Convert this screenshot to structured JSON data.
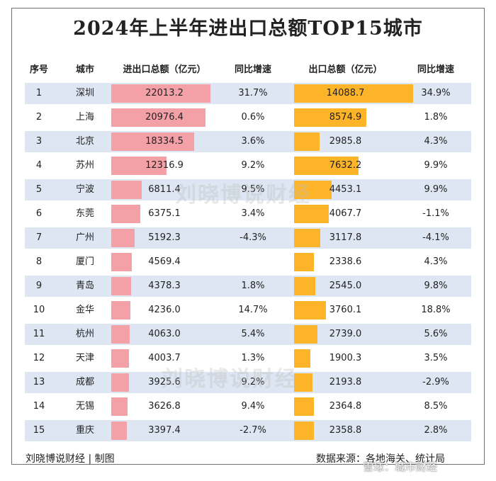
{
  "chart_data": {
    "type": "table",
    "title": "2024年上半年进出口总额TOP15城市",
    "columns": [
      "序号",
      "城市",
      "进出口总额（亿元）",
      "同比增速",
      "出口总额（亿元）",
      "同比增速"
    ],
    "rows": [
      {
        "rank": "1",
        "city": "深圳",
        "total": 22013.2,
        "total_yoy": "31.7%",
        "export": 14088.7,
        "export_yoy": "34.9%"
      },
      {
        "rank": "2",
        "city": "上海",
        "total": 20976.4,
        "total_yoy": "0.6%",
        "export": 8574.9,
        "export_yoy": "1.8%"
      },
      {
        "rank": "3",
        "city": "北京",
        "total": 18334.5,
        "total_yoy": "3.6%",
        "export": 2985.8,
        "export_yoy": "4.3%"
      },
      {
        "rank": "4",
        "city": "苏州",
        "total": 12316.9,
        "total_yoy": "9.2%",
        "export": 7632.2,
        "export_yoy": "9.9%"
      },
      {
        "rank": "5",
        "city": "宁波",
        "total": 6811.4,
        "total_yoy": "9.5%",
        "export": 4453.1,
        "export_yoy": "9.9%"
      },
      {
        "rank": "6",
        "city": "东莞",
        "total": 6375.1,
        "total_yoy": "3.4%",
        "export": 4067.7,
        "export_yoy": "-1.1%"
      },
      {
        "rank": "7",
        "city": "广州",
        "total": 5192.3,
        "total_yoy": "-4.3%",
        "export": 3117.8,
        "export_yoy": "-4.1%"
      },
      {
        "rank": "8",
        "city": "厦门",
        "total": 4569.4,
        "total_yoy": "",
        "export": 2338.6,
        "export_yoy": "4.3%"
      },
      {
        "rank": "9",
        "city": "青岛",
        "total": 4378.3,
        "total_yoy": "1.8%",
        "export": 2545.0,
        "export_yoy": "9.8%"
      },
      {
        "rank": "10",
        "city": "金华",
        "total": 4236.0,
        "total_yoy": "14.7%",
        "export": 3760.1,
        "export_yoy": "18.8%"
      },
      {
        "rank": "11",
        "city": "杭州",
        "total": 4063.0,
        "total_yoy": "5.4%",
        "export": 2739.0,
        "export_yoy": "5.6%"
      },
      {
        "rank": "12",
        "city": "天津",
        "total": 4003.7,
        "total_yoy": "1.3%",
        "export": 1900.3,
        "export_yoy": "3.5%"
      },
      {
        "rank": "13",
        "city": "成都",
        "total": 3925.6,
        "total_yoy": "9.2%",
        "export": 2193.8,
        "export_yoy": "-2.9%"
      },
      {
        "rank": "14",
        "city": "无锡",
        "total": 3626.8,
        "total_yoy": "9.4%",
        "export": 2364.8,
        "export_yoy": "8.5%"
      },
      {
        "rank": "15",
        "city": "重庆",
        "total": 3397.4,
        "total_yoy": "-2.7%",
        "export": 2358.8,
        "export_yoy": "2.8%"
      }
    ],
    "colors": {
      "total_bar": "#f4a0a7",
      "export_bar": "#fdb428",
      "band": "#dde6f2"
    }
  },
  "footer": {
    "credit": "刘晓博说财经 | 制图",
    "source": "数据来源：各地海关、统计局"
  },
  "watermark": "刘晓博说财经",
  "badge": "雪球：城市财经"
}
